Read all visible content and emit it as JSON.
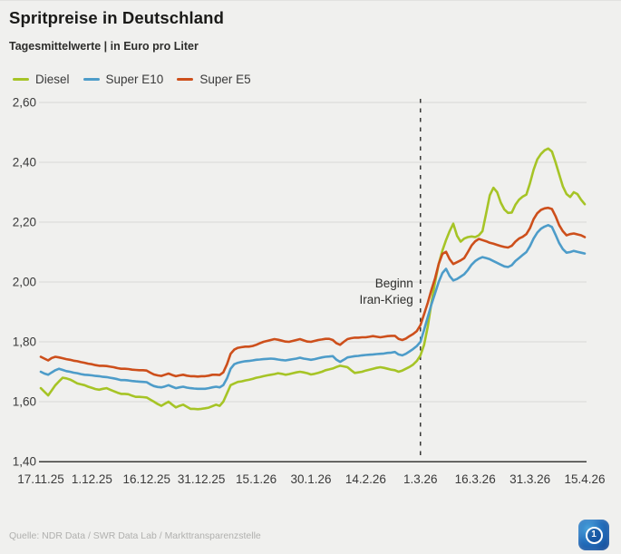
{
  "header": {
    "title": "Spritpreise in Deutschland",
    "subtitle": "Tagesmittelwerte | in Euro pro Liter"
  },
  "footer": {
    "source": "Quelle: NDR Data / SWR Data Lab / Markttransparenzstelle"
  },
  "logo": {
    "label": "1"
  },
  "colors": {
    "background": "#f0f0ee",
    "grid": "#d9d9d7",
    "axis": "#3a3a38",
    "text": "#3a3a3a",
    "annotation": "#2e2e2c"
  },
  "chart_data": {
    "type": "line",
    "title": "Spritpreise in Deutschland",
    "subtitle": "Tagesmittelwerte | in Euro pro Liter",
    "xlabel": "",
    "ylabel": "Euro pro Liter",
    "ylim": [
      1.4,
      2.6
    ],
    "grid": true,
    "legend_position": "top",
    "x_unit": "Tag (17.11.25 bis 15.4.26, 150 Tageswerte)",
    "x_tick_labels": [
      "17.11.25",
      "1.12.25",
      "16.12.25",
      "31.12.25",
      "15.1.26",
      "30.1.26",
      "14.2.26",
      "1.3.26",
      "16.3.26",
      "31.3.26",
      "15.4.26"
    ],
    "x_tick_positions": [
      0,
      14,
      29,
      44,
      59,
      74,
      89,
      104,
      119,
      134,
      149
    ],
    "y_ticks": [
      {
        "value": 1.4,
        "label": "1,40"
      },
      {
        "value": 1.6,
        "label": "1,60"
      },
      {
        "value": 1.8,
        "label": "1,80"
      },
      {
        "value": 2.0,
        "label": "2,00"
      },
      {
        "value": 2.2,
        "label": "2,20"
      },
      {
        "value": 2.4,
        "label": "2,40"
      },
      {
        "value": 2.6,
        "label": "2,60"
      }
    ],
    "annotation": {
      "line1": "Beginn",
      "line2": "Iran-Krieg",
      "x_index": 104,
      "x_label": "1.3.26"
    },
    "series": [
      {
        "name": "Diesel",
        "color": "#a6c426",
        "values": [
          1.645,
          1.633,
          1.621,
          1.638,
          1.655,
          1.668,
          1.68,
          1.678,
          1.674,
          1.668,
          1.661,
          1.658,
          1.655,
          1.65,
          1.646,
          1.642,
          1.64,
          1.643,
          1.645,
          1.64,
          1.635,
          1.63,
          1.626,
          1.626,
          1.625,
          1.62,
          1.616,
          1.616,
          1.615,
          1.614,
          1.607,
          1.6,
          1.592,
          1.586,
          1.593,
          1.6,
          1.59,
          1.581,
          1.586,
          1.59,
          1.583,
          1.576,
          1.576,
          1.575,
          1.576,
          1.578,
          1.58,
          1.585,
          1.59,
          1.586,
          1.6,
          1.628,
          1.655,
          1.661,
          1.666,
          1.668,
          1.671,
          1.673,
          1.676,
          1.68,
          1.682,
          1.685,
          1.688,
          1.69,
          1.692,
          1.695,
          1.693,
          1.69,
          1.692,
          1.695,
          1.698,
          1.7,
          1.698,
          1.695,
          1.691,
          1.693,
          1.696,
          1.7,
          1.705,
          1.708,
          1.711,
          1.716,
          1.72,
          1.718,
          1.715,
          1.705,
          1.696,
          1.698,
          1.7,
          1.704,
          1.707,
          1.71,
          1.713,
          1.715,
          1.713,
          1.71,
          1.707,
          1.705,
          1.7,
          1.704,
          1.71,
          1.716,
          1.724,
          1.736,
          1.755,
          1.79,
          1.85,
          1.93,
          2.0,
          2.06,
          2.105,
          2.14,
          2.17,
          2.195,
          2.155,
          2.135,
          2.145,
          2.15,
          2.152,
          2.15,
          2.156,
          2.17,
          2.23,
          2.29,
          2.315,
          2.3,
          2.265,
          2.242,
          2.231,
          2.232,
          2.258,
          2.275,
          2.285,
          2.292,
          2.33,
          2.375,
          2.41,
          2.428,
          2.44,
          2.446,
          2.436,
          2.4,
          2.36,
          2.32,
          2.294,
          2.284,
          2.3,
          2.294,
          2.275,
          2.26
        ]
      },
      {
        "name": "Super E10",
        "color": "#4d9cc9",
        "values": [
          1.7,
          1.694,
          1.69,
          1.698,
          1.705,
          1.71,
          1.706,
          1.702,
          1.7,
          1.697,
          1.695,
          1.692,
          1.69,
          1.689,
          1.688,
          1.686,
          1.685,
          1.683,
          1.682,
          1.68,
          1.678,
          1.675,
          1.672,
          1.672,
          1.671,
          1.669,
          1.668,
          1.667,
          1.666,
          1.665,
          1.658,
          1.652,
          1.649,
          1.648,
          1.651,
          1.655,
          1.65,
          1.645,
          1.648,
          1.65,
          1.647,
          1.645,
          1.644,
          1.643,
          1.643,
          1.643,
          1.645,
          1.648,
          1.65,
          1.648,
          1.655,
          1.678,
          1.71,
          1.725,
          1.73,
          1.733,
          1.735,
          1.736,
          1.738,
          1.74,
          1.741,
          1.742,
          1.743,
          1.744,
          1.743,
          1.741,
          1.739,
          1.738,
          1.74,
          1.742,
          1.744,
          1.747,
          1.744,
          1.742,
          1.74,
          1.742,
          1.745,
          1.748,
          1.75,
          1.751,
          1.752,
          1.74,
          1.733,
          1.74,
          1.748,
          1.75,
          1.752,
          1.753,
          1.755,
          1.756,
          1.757,
          1.758,
          1.759,
          1.76,
          1.761,
          1.763,
          1.764,
          1.766,
          1.758,
          1.755,
          1.76,
          1.768,
          1.776,
          1.786,
          1.8,
          1.84,
          1.882,
          1.925,
          1.962,
          2.0,
          2.03,
          2.044,
          2.02,
          2.005,
          2.01,
          2.018,
          2.026,
          2.04,
          2.058,
          2.07,
          2.078,
          2.083,
          2.08,
          2.076,
          2.07,
          2.064,
          2.058,
          2.052,
          2.05,
          2.056,
          2.07,
          2.08,
          2.09,
          2.1,
          2.12,
          2.145,
          2.165,
          2.178,
          2.185,
          2.19,
          2.184,
          2.158,
          2.13,
          2.11,
          2.098,
          2.1,
          2.104,
          2.101,
          2.098,
          2.095
        ]
      },
      {
        "name": "Super E5",
        "color": "#cd4f1b",
        "values": [
          1.75,
          1.744,
          1.738,
          1.746,
          1.75,
          1.748,
          1.745,
          1.742,
          1.74,
          1.737,
          1.735,
          1.732,
          1.73,
          1.727,
          1.725,
          1.722,
          1.72,
          1.72,
          1.719,
          1.717,
          1.715,
          1.712,
          1.71,
          1.71,
          1.709,
          1.707,
          1.706,
          1.705,
          1.705,
          1.704,
          1.697,
          1.691,
          1.688,
          1.686,
          1.69,
          1.694,
          1.689,
          1.685,
          1.688,
          1.69,
          1.687,
          1.685,
          1.685,
          1.684,
          1.685,
          1.685,
          1.687,
          1.69,
          1.69,
          1.689,
          1.698,
          1.725,
          1.76,
          1.774,
          1.78,
          1.782,
          1.784,
          1.784,
          1.786,
          1.79,
          1.795,
          1.8,
          1.803,
          1.806,
          1.809,
          1.807,
          1.804,
          1.801,
          1.8,
          1.803,
          1.806,
          1.809,
          1.805,
          1.801,
          1.8,
          1.803,
          1.806,
          1.808,
          1.81,
          1.81,
          1.806,
          1.795,
          1.79,
          1.8,
          1.809,
          1.812,
          1.814,
          1.814,
          1.815,
          1.815,
          1.817,
          1.819,
          1.817,
          1.815,
          1.817,
          1.819,
          1.82,
          1.82,
          1.81,
          1.806,
          1.811,
          1.819,
          1.826,
          1.836,
          1.856,
          1.892,
          1.93,
          1.974,
          2.012,
          2.06,
          2.094,
          2.101,
          2.076,
          2.06,
          2.066,
          2.072,
          2.08,
          2.1,
          2.122,
          2.136,
          2.144,
          2.14,
          2.136,
          2.131,
          2.128,
          2.124,
          2.12,
          2.117,
          2.115,
          2.121,
          2.135,
          2.145,
          2.151,
          2.16,
          2.18,
          2.21,
          2.23,
          2.241,
          2.246,
          2.248,
          2.244,
          2.22,
          2.19,
          2.17,
          2.156,
          2.16,
          2.162,
          2.159,
          2.156,
          2.15
        ]
      }
    ]
  }
}
